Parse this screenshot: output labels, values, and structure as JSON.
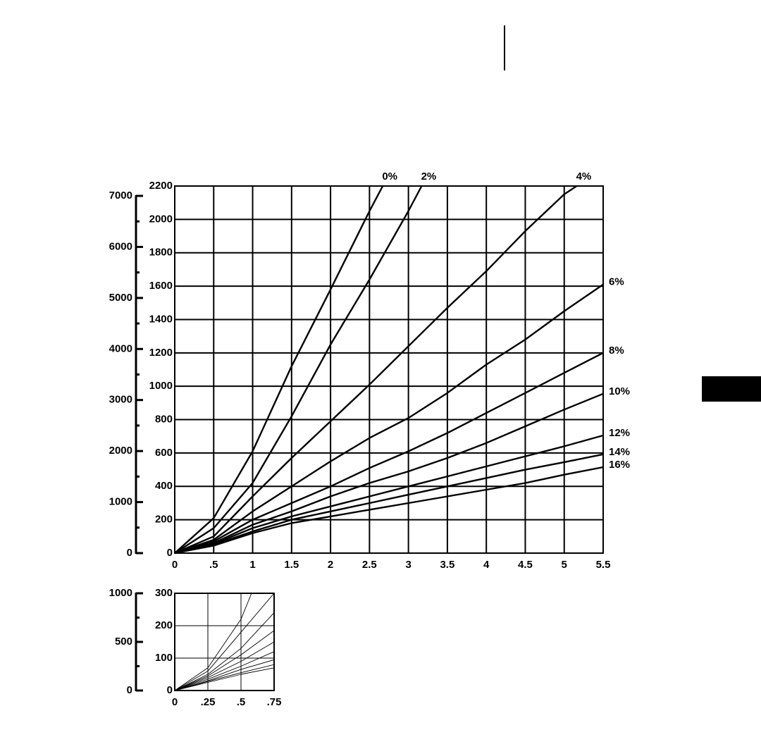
{
  "chart_data": [
    {
      "type": "line",
      "xlim": [
        0,
        5.5
      ],
      "xticks": [
        0,
        {
          "value": 0.5,
          "label": ".5"
        },
        1,
        1.5,
        2,
        2.5,
        3,
        3.5,
        4,
        4.5,
        5,
        5.5
      ],
      "ylim": [
        0,
        2200
      ],
      "yticks": [
        0,
        200,
        400,
        600,
        800,
        1000,
        1200,
        1400,
        1600,
        1800,
        2000,
        2200
      ],
      "y2lim": [
        0,
        7000
      ],
      "y2ticks": [
        0,
        1000,
        2000,
        3000,
        4000,
        5000,
        6000,
        7000
      ],
      "y2minor_ticks": [
        500,
        1500,
        2500,
        3500,
        4500,
        5500,
        6500
      ],
      "grid": true,
      "color": "#000000",
      "series": [
        {
          "name": "0%",
          "x": [
            0,
            0.5,
            1,
            1.5,
            2,
            2.5,
            2.67
          ],
          "values": [
            0,
            210,
            610,
            1120,
            1580,
            2050,
            2200
          ]
        },
        {
          "name": "2%",
          "x": [
            0,
            0.5,
            1,
            1.5,
            2,
            2.5,
            3,
            3.17
          ],
          "values": [
            0,
            150,
            420,
            820,
            1250,
            1640,
            2050,
            2200
          ]
        },
        {
          "name": "4%",
          "x": [
            0,
            0.5,
            1,
            1.5,
            2,
            2.5,
            3,
            3.5,
            4,
            4.5,
            5,
            5.16
          ],
          "values": [
            0,
            100,
            340,
            570,
            790,
            1010,
            1240,
            1470,
            1690,
            1930,
            2150,
            2200
          ]
        },
        {
          "name": "6%",
          "x": [
            0,
            0.5,
            1,
            1.5,
            2,
            2.5,
            3,
            3.5,
            4,
            4.5,
            5,
            5.5
          ],
          "values": [
            0,
            80,
            250,
            400,
            550,
            690,
            810,
            960,
            1130,
            1280,
            1450,
            1610
          ]
        },
        {
          "name": "8%",
          "x": [
            0,
            0.5,
            1,
            1.5,
            2,
            2.5,
            3,
            3.5,
            4,
            4.5,
            5,
            5.5
          ],
          "values": [
            0,
            70,
            200,
            300,
            400,
            510,
            610,
            720,
            840,
            960,
            1080,
            1200
          ]
        },
        {
          "name": "10%",
          "x": [
            0,
            0.5,
            1,
            1.5,
            2,
            2.5,
            3,
            3.5,
            4,
            4.5,
            5,
            5.5
          ],
          "values": [
            0,
            60,
            170,
            250,
            340,
            420,
            490,
            570,
            660,
            760,
            860,
            955
          ]
        },
        {
          "name": "12%",
          "x": [
            0,
            0.5,
            1,
            1.5,
            2,
            2.5,
            3,
            3.5,
            4,
            4.5,
            5,
            5.5
          ],
          "values": [
            0,
            55,
            150,
            220,
            280,
            340,
            400,
            460,
            520,
            580,
            640,
            705
          ]
        },
        {
          "name": "14%",
          "x": [
            0,
            0.5,
            1,
            1.5,
            2,
            2.5,
            3,
            3.5,
            4,
            4.5,
            5,
            5.5
          ],
          "values": [
            0,
            50,
            130,
            200,
            250,
            300,
            350,
            400,
            450,
            500,
            545,
            592
          ]
        },
        {
          "name": "16%",
          "x": [
            0,
            0.5,
            1,
            1.5,
            2,
            2.5,
            3,
            3.5,
            4,
            4.5,
            5,
            5.5
          ],
          "values": [
            0,
            45,
            120,
            180,
            220,
            260,
            300,
            340,
            380,
            420,
            470,
            515
          ]
        }
      ]
    },
    {
      "type": "line",
      "xlim": [
        0,
        0.75
      ],
      "xticks": [
        0,
        {
          "value": 0.25,
          "label": ".25"
        },
        {
          "value": 0.5,
          "label": ".5"
        },
        {
          "value": 0.75,
          "label": ".75"
        }
      ],
      "ylim": [
        0,
        300
      ],
      "yticks": [
        0,
        100,
        200,
        300
      ],
      "y2lim": [
        0,
        1000
      ],
      "y2ticks": [
        0,
        500,
        1000
      ],
      "y2minor_ticks": [
        250,
        750
      ],
      "grid": true,
      "color": "#000000",
      "series": [
        {
          "x": [
            0,
            0.25,
            0.5,
            0.58
          ],
          "values": [
            0,
            70,
            220,
            300
          ]
        },
        {
          "x": [
            0,
            0.25,
            0.5,
            0.75
          ],
          "values": [
            0,
            60,
            180,
            300
          ]
        },
        {
          "x": [
            0,
            0.25,
            0.5,
            0.75
          ],
          "values": [
            0,
            50,
            130,
            240
          ]
        },
        {
          "x": [
            0,
            0.25,
            0.5,
            0.75
          ],
          "values": [
            0,
            45,
            110,
            185
          ]
        },
        {
          "x": [
            0,
            0.25,
            0.5,
            0.75
          ],
          "values": [
            0,
            40,
            90,
            150
          ]
        },
        {
          "x": [
            0,
            0.25,
            0.5,
            0.75
          ],
          "values": [
            0,
            35,
            75,
            120
          ]
        },
        {
          "x": [
            0,
            0.25,
            0.5,
            0.75
          ],
          "values": [
            0,
            30,
            65,
            95
          ]
        },
        {
          "x": [
            0,
            0.25,
            0.5,
            0.75
          ],
          "values": [
            0,
            28,
            55,
            80
          ]
        },
        {
          "x": [
            0,
            0.25,
            0.5,
            0.75
          ],
          "values": [
            0,
            25,
            50,
            70
          ]
        }
      ]
    }
  ]
}
